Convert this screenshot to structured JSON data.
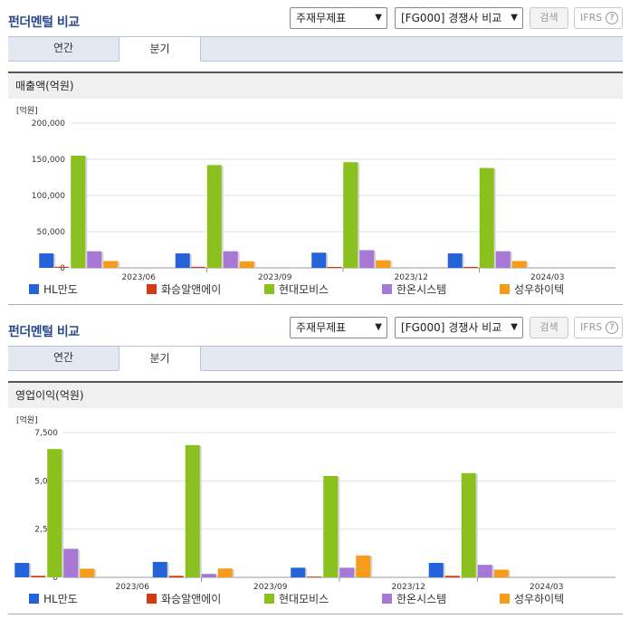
{
  "panels": [
    {
      "title": "펀더멘털 비교",
      "select1": "주재무제표",
      "select2": "[FG000] 경쟁사 비교",
      "search_label": "검색",
      "ifrs_label": "IFRS",
      "help_glyph": "?",
      "tabs": [
        "연간",
        "분기"
      ],
      "section_label": "매출액(억원)"
    },
    {
      "title": "펀더멘털 비교",
      "select1": "주재무제표",
      "select2": "[FG000] 경쟁사 비교",
      "search_label": "검색",
      "ifrs_label": "IFRS",
      "help_glyph": "?",
      "tabs": [
        "연간",
        "분기"
      ],
      "section_label": "영업이익(억원)"
    }
  ],
  "colors": {
    "HL만도": "#2563d9",
    "화승알앤에이": "#d33a16",
    "현대모비스": "#8ac11f",
    "한온시스템": "#a878d6",
    "성우하이텍": "#f59c1a"
  },
  "chart_data": [
    {
      "type": "bar",
      "unit_label": "[억원]",
      "categories": [
        "2023/06",
        "2023/09",
        "2023/12",
        "2024/03"
      ],
      "ylim": [
        0,
        200000
      ],
      "yticks": [
        "200,000",
        "150,000",
        "100,000",
        "50,000",
        "0"
      ],
      "ytick_values": [
        200000,
        150000,
        100000,
        50000,
        0
      ],
      "series": [
        {
          "name": "HL만도",
          "values": [
            20000,
            20000,
            21000,
            20000
          ]
        },
        {
          "name": "화승알앤에이",
          "values": [
            1500,
            1400,
            1300,
            1300
          ]
        },
        {
          "name": "현대모비스",
          "values": [
            155000,
            142000,
            146000,
            138000
          ]
        },
        {
          "name": "한온시스템",
          "values": [
            23000,
            23000,
            24500,
            23000
          ]
        },
        {
          "name": "성우하이텍",
          "values": [
            9500,
            9000,
            10500,
            9500
          ]
        }
      ]
    },
    {
      "type": "bar",
      "unit_label": "[억원]",
      "categories": [
        "2023/06",
        "2023/09",
        "2023/12",
        "2024/03"
      ],
      "ylim": [
        0,
        7500
      ],
      "yticks": [
        "7,500",
        "5,000",
        "2,500",
        "0"
      ],
      "ytick_values": [
        7500,
        5000,
        2500,
        0
      ],
      "series": [
        {
          "name": "HL만도",
          "values": [
            750,
            800,
            500,
            750
          ]
        },
        {
          "name": "화승알앤에이",
          "values": [
            80,
            80,
            40,
            80
          ]
        },
        {
          "name": "현대모비스",
          "values": [
            6650,
            6850,
            5250,
            5400
          ]
        },
        {
          "name": "한온시스템",
          "values": [
            1480,
            180,
            500,
            650
          ]
        },
        {
          "name": "성우하이텍",
          "values": [
            450,
            460,
            1130,
            400
          ]
        }
      ]
    }
  ]
}
